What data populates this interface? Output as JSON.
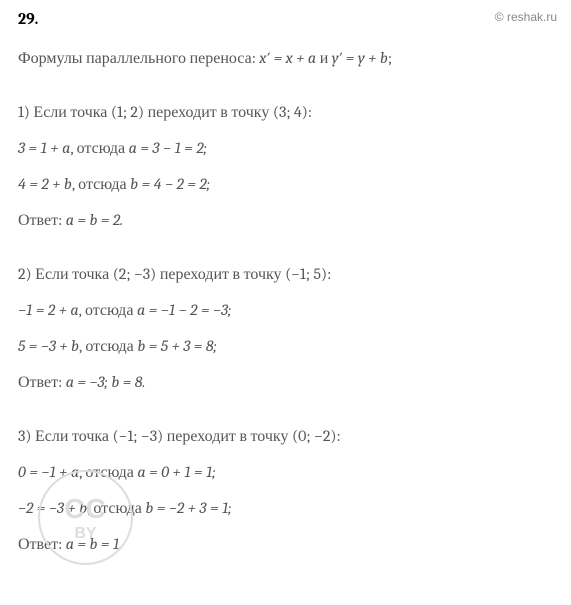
{
  "watermark": "© reshak.ru",
  "problem_number": "29.",
  "intro": {
    "text_prefix": "Формулы параллельного переноса:  ",
    "formula1_lhs": "x′",
    "formula1_rhs": " = x + a",
    "and": "  и  ",
    "formula2_lhs": "y′",
    "formula2_rhs": " = y + b",
    "suffix": ";"
  },
  "sections": [
    {
      "header": "1) Если точка (1;  2) переходит в точку (3;  4):",
      "line1_eq": "3 = 1 + a",
      "line1_mid": ", отсюда  ",
      "line1_res": "a = 3 − 1 = 2;",
      "line2_eq": "4 = 2 + b",
      "line2_mid": ", отсюда  ",
      "line2_res": "b = 4 − 2 = 2;",
      "answer_label": "Ответ: ",
      "answer_val": "a = b = 2."
    },
    {
      "header": "2) Если точка (2;  −3) переходит в точку (−1;  5):",
      "line1_eq": "−1 = 2 + a",
      "line1_mid": ", отсюда  ",
      "line1_res": "a = −1 − 2 = −3;",
      "line2_eq": "5 = −3 + b",
      "line2_mid": ", отсюда  ",
      "line2_res": "b = 5 + 3 = 8;",
      "answer_label": "Ответ: ",
      "answer_val": "a = −3;  b = 8."
    },
    {
      "header": "3) Если точка (−1;  −3) переходит в точку (0;  −2):",
      "line1_eq": "0 = −1 + a",
      "line1_mid": ", отсюда  ",
      "line1_res": "a = 0 + 1 = 1;",
      "line2_eq": "−2 = −3 + b",
      "line2_mid": ", отсюда  ",
      "line2_res": "b = −2 + 3 = 1;",
      "answer_label": "Ответ: ",
      "answer_val": "a = b = 1."
    }
  ],
  "circle_watermark": {
    "top": "CC",
    "bottom": "BY"
  },
  "colors": {
    "text": "#555555",
    "bold": "#000000",
    "watermark": "#888888",
    "circle": "#dddddd",
    "background": "#ffffff"
  },
  "fonts": {
    "body_size_pt": 12,
    "family": "Cambria"
  }
}
